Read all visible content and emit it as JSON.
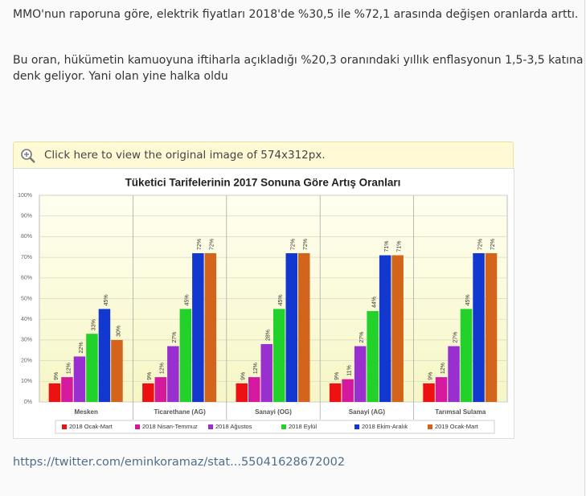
{
  "post": {
    "paragraphs": [
      "MMO'nun raporuna göre, elektrik fiyatları 2018'de %30,5 ile %72,1 arasında değişen oranlarda arttı.",
      "Bu oran, hükümetin kamuoyuna iftiharla açıkladığı %20,3 oranındaki yıllık enflasyonun 1,5-3,5 katına denk geliyor. Yani olan yine halka oldu"
    ],
    "image_notice": "Click here to view the original image of 574x312px.",
    "link": "https://twitter.com/eminkoramaz/stat...55041628672002"
  },
  "chart_data": {
    "type": "bar",
    "title": "Tüketici Tarifelerinin 2017 Sonuna Göre Artış Oranları",
    "categories": [
      "Mesken",
      "Ticarethane (AG)",
      "Sanayi (OG)",
      "Sanayi (AG)",
      "Tarımsal Sulama"
    ],
    "series": [
      {
        "name": "2018 Ocak-Mart",
        "color": "#ee1111",
        "values": [
          9,
          9,
          9,
          9,
          9
        ],
        "value_labels": [
          "9%",
          "9%",
          "9%",
          "9%",
          "9%"
        ]
      },
      {
        "name": "2018 Nisan-Temmuz",
        "color": "#d4199f",
        "values": [
          12,
          12,
          12,
          11,
          12
        ],
        "value_labels": [
          "12%",
          "12%",
          "12%",
          "11%",
          "12%"
        ]
      },
      {
        "name": "2018 Ağustos",
        "color": "#9a2fd0",
        "values": [
          22,
          27,
          28,
          27,
          27
        ],
        "value_labels": [
          "22%",
          "27%",
          "28%",
          "27%",
          "27%"
        ]
      },
      {
        "name": "2018 Eylül",
        "color": "#22d22a",
        "values": [
          33,
          45,
          45,
          44,
          45
        ],
        "value_labels": [
          "33%",
          "45%",
          "45%",
          "44%",
          "45%"
        ]
      },
      {
        "name": "2018 Ekim-Aralık",
        "color": "#1238d0",
        "values": [
          45,
          72,
          72,
          71,
          72
        ],
        "value_labels": [
          "45%",
          "72%",
          "72%",
          "71%",
          "72%"
        ]
      },
      {
        "name": "2019 Ocak-Mart",
        "color": "#d2641c",
        "values": [
          30,
          72,
          72,
          71,
          72
        ],
        "value_labels": [
          "30%",
          "72%",
          "72%",
          "71%",
          "72%"
        ]
      }
    ],
    "ylim": [
      0,
      100
    ],
    "yticks": [
      {
        "value": 0,
        "label": "0%"
      },
      {
        "value": 10,
        "label": "10%"
      },
      {
        "value": 20,
        "label": "20%"
      },
      {
        "value": 30,
        "label": "30%"
      },
      {
        "value": 40,
        "label": "40%"
      },
      {
        "value": 50,
        "label": "50%"
      },
      {
        "value": 60,
        "label": "60%"
      },
      {
        "value": 70,
        "label": "70%"
      },
      {
        "value": 80,
        "label": "80%"
      },
      {
        "value": 90,
        "label": "90%"
      },
      {
        "value": 100,
        "label": "100%"
      }
    ],
    "grid": true,
    "legend": "bottom"
  }
}
